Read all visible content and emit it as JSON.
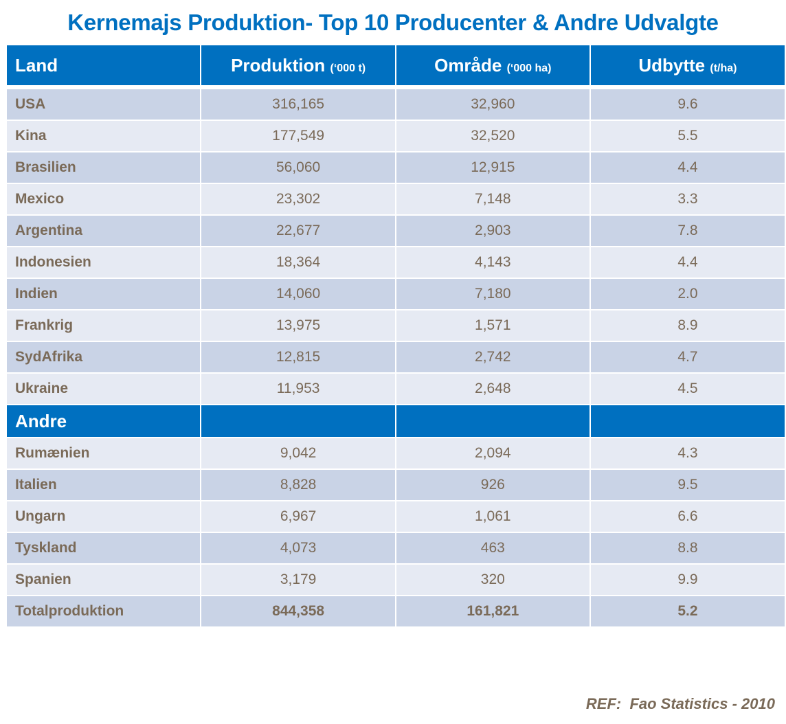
{
  "title": "Kernemajs Produktion- Top 10 Producenter & Andre Udvalgte",
  "headers": [
    {
      "label": "Land",
      "unit": ""
    },
    {
      "label": "Produktion",
      "unit": "(‘000 t)"
    },
    {
      "label": "Område",
      "unit": "(‘000 ha)"
    },
    {
      "label": "Udbytte",
      "unit": "(t/ha)"
    }
  ],
  "top10": [
    {
      "land": "USA",
      "produktion": "316,165",
      "omraade": "32,960",
      "udbytte": "9.6"
    },
    {
      "land": "Kina",
      "produktion": "177,549",
      "omraade": "32,520",
      "udbytte": "5.5"
    },
    {
      "land": "Brasilien",
      "produktion": "56,060",
      "omraade": "12,915",
      "udbytte": "4.4"
    },
    {
      "land": "Mexico",
      "produktion": "23,302",
      "omraade": "7,148",
      "udbytte": "3.3"
    },
    {
      "land": "Argentina",
      "produktion": "22,677",
      "omraade": "2,903",
      "udbytte": "7.8"
    },
    {
      "land": "Indonesien",
      "produktion": "18,364",
      "omraade": "4,143",
      "udbytte": "4.4"
    },
    {
      "land": "Indien",
      "produktion": "14,060",
      "omraade": "7,180",
      "udbytte": "2.0"
    },
    {
      "land": "Frankrig",
      "produktion": "13,975",
      "omraade": "1,571",
      "udbytte": "8.9"
    },
    {
      "land": "SydAfrika",
      "produktion": "12,815",
      "omraade": "2,742",
      "udbytte": "4.7"
    },
    {
      "land": "Ukraine",
      "produktion": "11,953",
      "omraade": "2,648",
      "udbytte": "4.5"
    }
  ],
  "section_label": "Andre",
  "others": [
    {
      "land": "Rumænien",
      "produktion": "9,042",
      "omraade": "2,094",
      "udbytte": "4.3"
    },
    {
      "land": "Italien",
      "produktion": "8,828",
      "omraade": "926",
      "udbytte": "9.5"
    },
    {
      "land": "Ungarn",
      "produktion": "6,967",
      "omraade": "1,061",
      "udbytte": "6.6"
    },
    {
      "land": "Tyskland",
      "produktion": "4,073",
      "omraade": "463",
      "udbytte": "8.8"
    },
    {
      "land": "Spanien",
      "produktion": "3,179",
      "omraade": "320",
      "udbytte": "9.9"
    }
  ],
  "total": {
    "land": "Totalproduktion",
    "produktion": "844,358",
    "omraade": "161,821",
    "udbytte": "5.2"
  },
  "reference": "REF:  Fao Statistics - 2010",
  "colors": {
    "header_blue": "#0070c0",
    "row_dark": "#c9d3e6",
    "row_light": "#e6eaf3",
    "text_brown": "#7a6a58"
  }
}
